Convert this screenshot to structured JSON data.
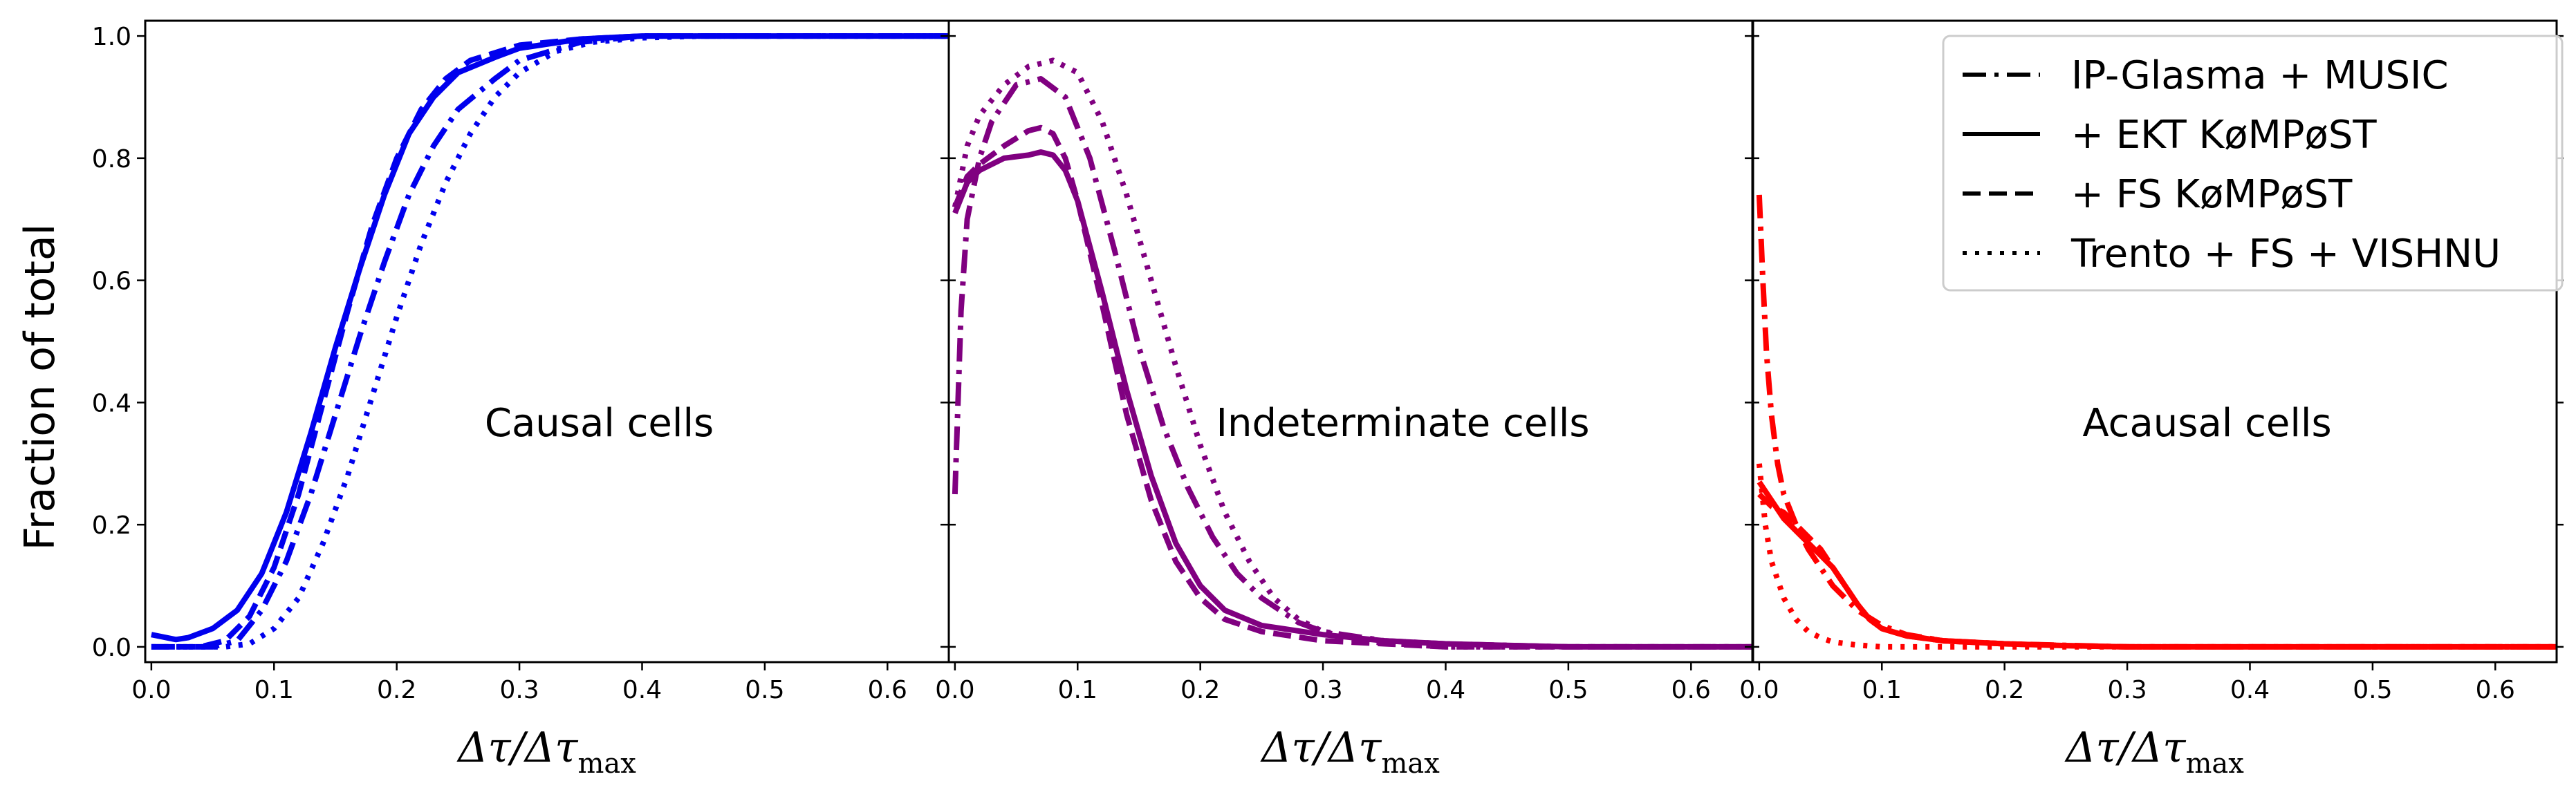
{
  "chart_data": {
    "type": "line",
    "ylabel": "Fraction of total",
    "xlabel": "Δτ/Δτ_max",
    "xlabel_main": "Δτ/Δτ",
    "xlabel_sub": "max",
    "xlim": [
      -0.005,
      0.65
    ],
    "ylim": [
      -0.025,
      1.025
    ],
    "xticks": [
      "0.0",
      "0.1",
      "0.2",
      "0.3",
      "0.4",
      "0.5",
      "0.6"
    ],
    "yticks": [
      "0.0",
      "0.2",
      "0.4",
      "0.6",
      "0.8",
      "1.0"
    ],
    "legend": [
      {
        "label": "IP-Glasma + MUSIC",
        "style": "dashdot"
      },
      {
        "label": "+ EKT KøMPøST",
        "style": "solid"
      },
      {
        "label": "+ FS KøMPøST",
        "style": "dashed"
      },
      {
        "label": "Trento + FS + VISHNU",
        "style": "dotted"
      }
    ],
    "panels": [
      {
        "annotation": "Causal cells",
        "color": "#0000ee",
        "series": [
          {
            "name": "IP-Glasma + MUSIC",
            "style": "dashdot",
            "x": [
              0,
              0.05,
              0.07,
              0.09,
              0.11,
              0.13,
              0.15,
              0.17,
              0.19,
              0.21,
              0.23,
              0.25,
              0.28,
              0.3,
              0.35,
              0.4,
              0.45,
              0.65
            ],
            "y": [
              0,
              0,
              0.01,
              0.06,
              0.14,
              0.25,
              0.38,
              0.51,
              0.63,
              0.74,
              0.82,
              0.88,
              0.93,
              0.96,
              0.99,
              1.0,
              1.0,
              1.0
            ]
          },
          {
            "name": "+ EKT KøMPøST",
            "style": "solid",
            "x": [
              0,
              0.02,
              0.03,
              0.05,
              0.07,
              0.09,
              0.11,
              0.13,
              0.15,
              0.17,
              0.19,
              0.21,
              0.23,
              0.25,
              0.28,
              0.3,
              0.35,
              0.4,
              0.65
            ],
            "y": [
              0.02,
              0.012,
              0.015,
              0.03,
              0.06,
              0.12,
              0.22,
              0.35,
              0.49,
              0.62,
              0.74,
              0.84,
              0.9,
              0.94,
              0.965,
              0.98,
              0.995,
              1.0,
              1.0
            ]
          },
          {
            "name": "+ FS KøMPøST",
            "style": "dashed",
            "x": [
              0,
              0.04,
              0.06,
              0.08,
              0.1,
              0.12,
              0.14,
              0.16,
              0.18,
              0.2,
              0.22,
              0.24,
              0.26,
              0.3,
              0.35,
              0.4,
              0.65
            ],
            "y": [
              0,
              0,
              0.01,
              0.05,
              0.13,
              0.25,
              0.4,
              0.55,
              0.69,
              0.8,
              0.88,
              0.93,
              0.96,
              0.985,
              0.995,
              1.0,
              1.0
            ]
          },
          {
            "name": "Trento + FS + VISHNU",
            "style": "dotted",
            "x": [
              0,
              0.06,
              0.08,
              0.1,
              0.12,
              0.14,
              0.16,
              0.18,
              0.2,
              0.22,
              0.24,
              0.26,
              0.28,
              0.3,
              0.33,
              0.36,
              0.4,
              0.45,
              0.65
            ],
            "y": [
              0,
              0,
              0.005,
              0.03,
              0.08,
              0.17,
              0.28,
              0.41,
              0.54,
              0.66,
              0.76,
              0.84,
              0.9,
              0.94,
              0.975,
              0.99,
              0.997,
              1.0,
              1.0
            ]
          }
        ]
      },
      {
        "annotation": "Indeterminate cells",
        "color": "#800080",
        "series": [
          {
            "name": "IP-Glasma + MUSIC",
            "style": "dashdot",
            "x": [
              0,
              0.005,
              0.01,
              0.02,
              0.03,
              0.05,
              0.07,
              0.09,
              0.11,
              0.13,
              0.15,
              0.17,
              0.19,
              0.21,
              0.23,
              0.25,
              0.28,
              0.3,
              0.35,
              0.4,
              0.5,
              0.65
            ],
            "y": [
              0.25,
              0.55,
              0.7,
              0.8,
              0.86,
              0.92,
              0.93,
              0.9,
              0.8,
              0.65,
              0.49,
              0.36,
              0.26,
              0.18,
              0.12,
              0.08,
              0.04,
              0.025,
              0.01,
              0.005,
              0.0,
              0.0
            ]
          },
          {
            "name": "+ EKT KøMPøST",
            "style": "solid",
            "x": [
              0,
              0.01,
              0.02,
              0.04,
              0.06,
              0.07,
              0.08,
              0.09,
              0.1,
              0.12,
              0.14,
              0.16,
              0.18,
              0.2,
              0.22,
              0.25,
              0.3,
              0.35,
              0.4,
              0.5,
              0.65
            ],
            "y": [
              0.71,
              0.76,
              0.78,
              0.8,
              0.805,
              0.81,
              0.805,
              0.78,
              0.73,
              0.58,
              0.42,
              0.28,
              0.17,
              0.1,
              0.06,
              0.035,
              0.02,
              0.01,
              0.005,
              0.0,
              0.0
            ]
          },
          {
            "name": "+ FS KøMPøST",
            "style": "dashed",
            "x": [
              0,
              0.01,
              0.02,
              0.04,
              0.06,
              0.07,
              0.08,
              0.09,
              0.1,
              0.12,
              0.14,
              0.16,
              0.18,
              0.2,
              0.22,
              0.25,
              0.3,
              0.35,
              0.4,
              0.5,
              0.65
            ],
            "y": [
              0.72,
              0.77,
              0.79,
              0.82,
              0.845,
              0.85,
              0.84,
              0.8,
              0.73,
              0.56,
              0.38,
              0.24,
              0.14,
              0.08,
              0.045,
              0.025,
              0.01,
              0.005,
              0.0,
              0.0,
              0.0
            ]
          },
          {
            "name": "Trento + FS + VISHNU",
            "style": "dotted",
            "x": [
              0,
              0.01,
              0.02,
              0.04,
              0.06,
              0.08,
              0.1,
              0.12,
              0.14,
              0.16,
              0.18,
              0.2,
              0.22,
              0.24,
              0.26,
              0.28,
              0.3,
              0.33,
              0.36,
              0.4,
              0.5,
              0.65
            ],
            "y": [
              0.72,
              0.82,
              0.87,
              0.92,
              0.95,
              0.96,
              0.94,
              0.86,
              0.74,
              0.6,
              0.46,
              0.33,
              0.22,
              0.14,
              0.08,
              0.045,
              0.025,
              0.01,
              0.005,
              0.0,
              0.0,
              0.0
            ]
          }
        ]
      },
      {
        "annotation": "Acausal cells",
        "color": "#ff0000",
        "series": [
          {
            "name": "IP-Glasma + MUSIC",
            "style": "dashdot",
            "x": [
              0,
              0.003,
              0.006,
              0.01,
              0.015,
              0.02,
              0.03,
              0.04,
              0.06,
              0.08,
              0.1,
              0.12,
              0.15,
              0.2,
              0.3,
              0.65
            ],
            "y": [
              0.74,
              0.6,
              0.48,
              0.38,
              0.3,
              0.25,
              0.2,
              0.16,
              0.1,
              0.06,
              0.035,
              0.02,
              0.01,
              0.005,
              0.0,
              0.0
            ]
          },
          {
            "name": "+ EKT KøMPøST",
            "style": "solid",
            "x": [
              0,
              0.01,
              0.02,
              0.03,
              0.04,
              0.05,
              0.06,
              0.07,
              0.08,
              0.09,
              0.1,
              0.12,
              0.15,
              0.2,
              0.25,
              0.3,
              0.65
            ],
            "y": [
              0.27,
              0.24,
              0.21,
              0.19,
              0.17,
              0.15,
              0.13,
              0.1,
              0.07,
              0.045,
              0.03,
              0.018,
              0.01,
              0.005,
              0.002,
              0.0,
              0.0
            ]
          },
          {
            "name": "+ FS KøMPøST",
            "style": "dashed",
            "x": [
              0,
              0.01,
              0.02,
              0.03,
              0.04,
              0.05,
              0.06,
              0.07,
              0.08,
              0.09,
              0.1,
              0.12,
              0.15,
              0.2,
              0.25,
              0.3,
              0.65
            ],
            "y": [
              0.25,
              0.23,
              0.22,
              0.2,
              0.18,
              0.16,
              0.13,
              0.1,
              0.07,
              0.045,
              0.03,
              0.018,
              0.01,
              0.005,
              0.002,
              0.0,
              0.0
            ]
          },
          {
            "name": "Trento + FS + VISHNU",
            "style": "dotted",
            "x": [
              0,
              0.005,
              0.01,
              0.02,
              0.03,
              0.04,
              0.05,
              0.06,
              0.08,
              0.1,
              0.15,
              0.2,
              0.65
            ],
            "y": [
              0.3,
              0.2,
              0.14,
              0.08,
              0.045,
              0.025,
              0.015,
              0.008,
              0.003,
              0.0,
              0.0,
              0.0,
              0.0
            ]
          }
        ]
      }
    ]
  }
}
